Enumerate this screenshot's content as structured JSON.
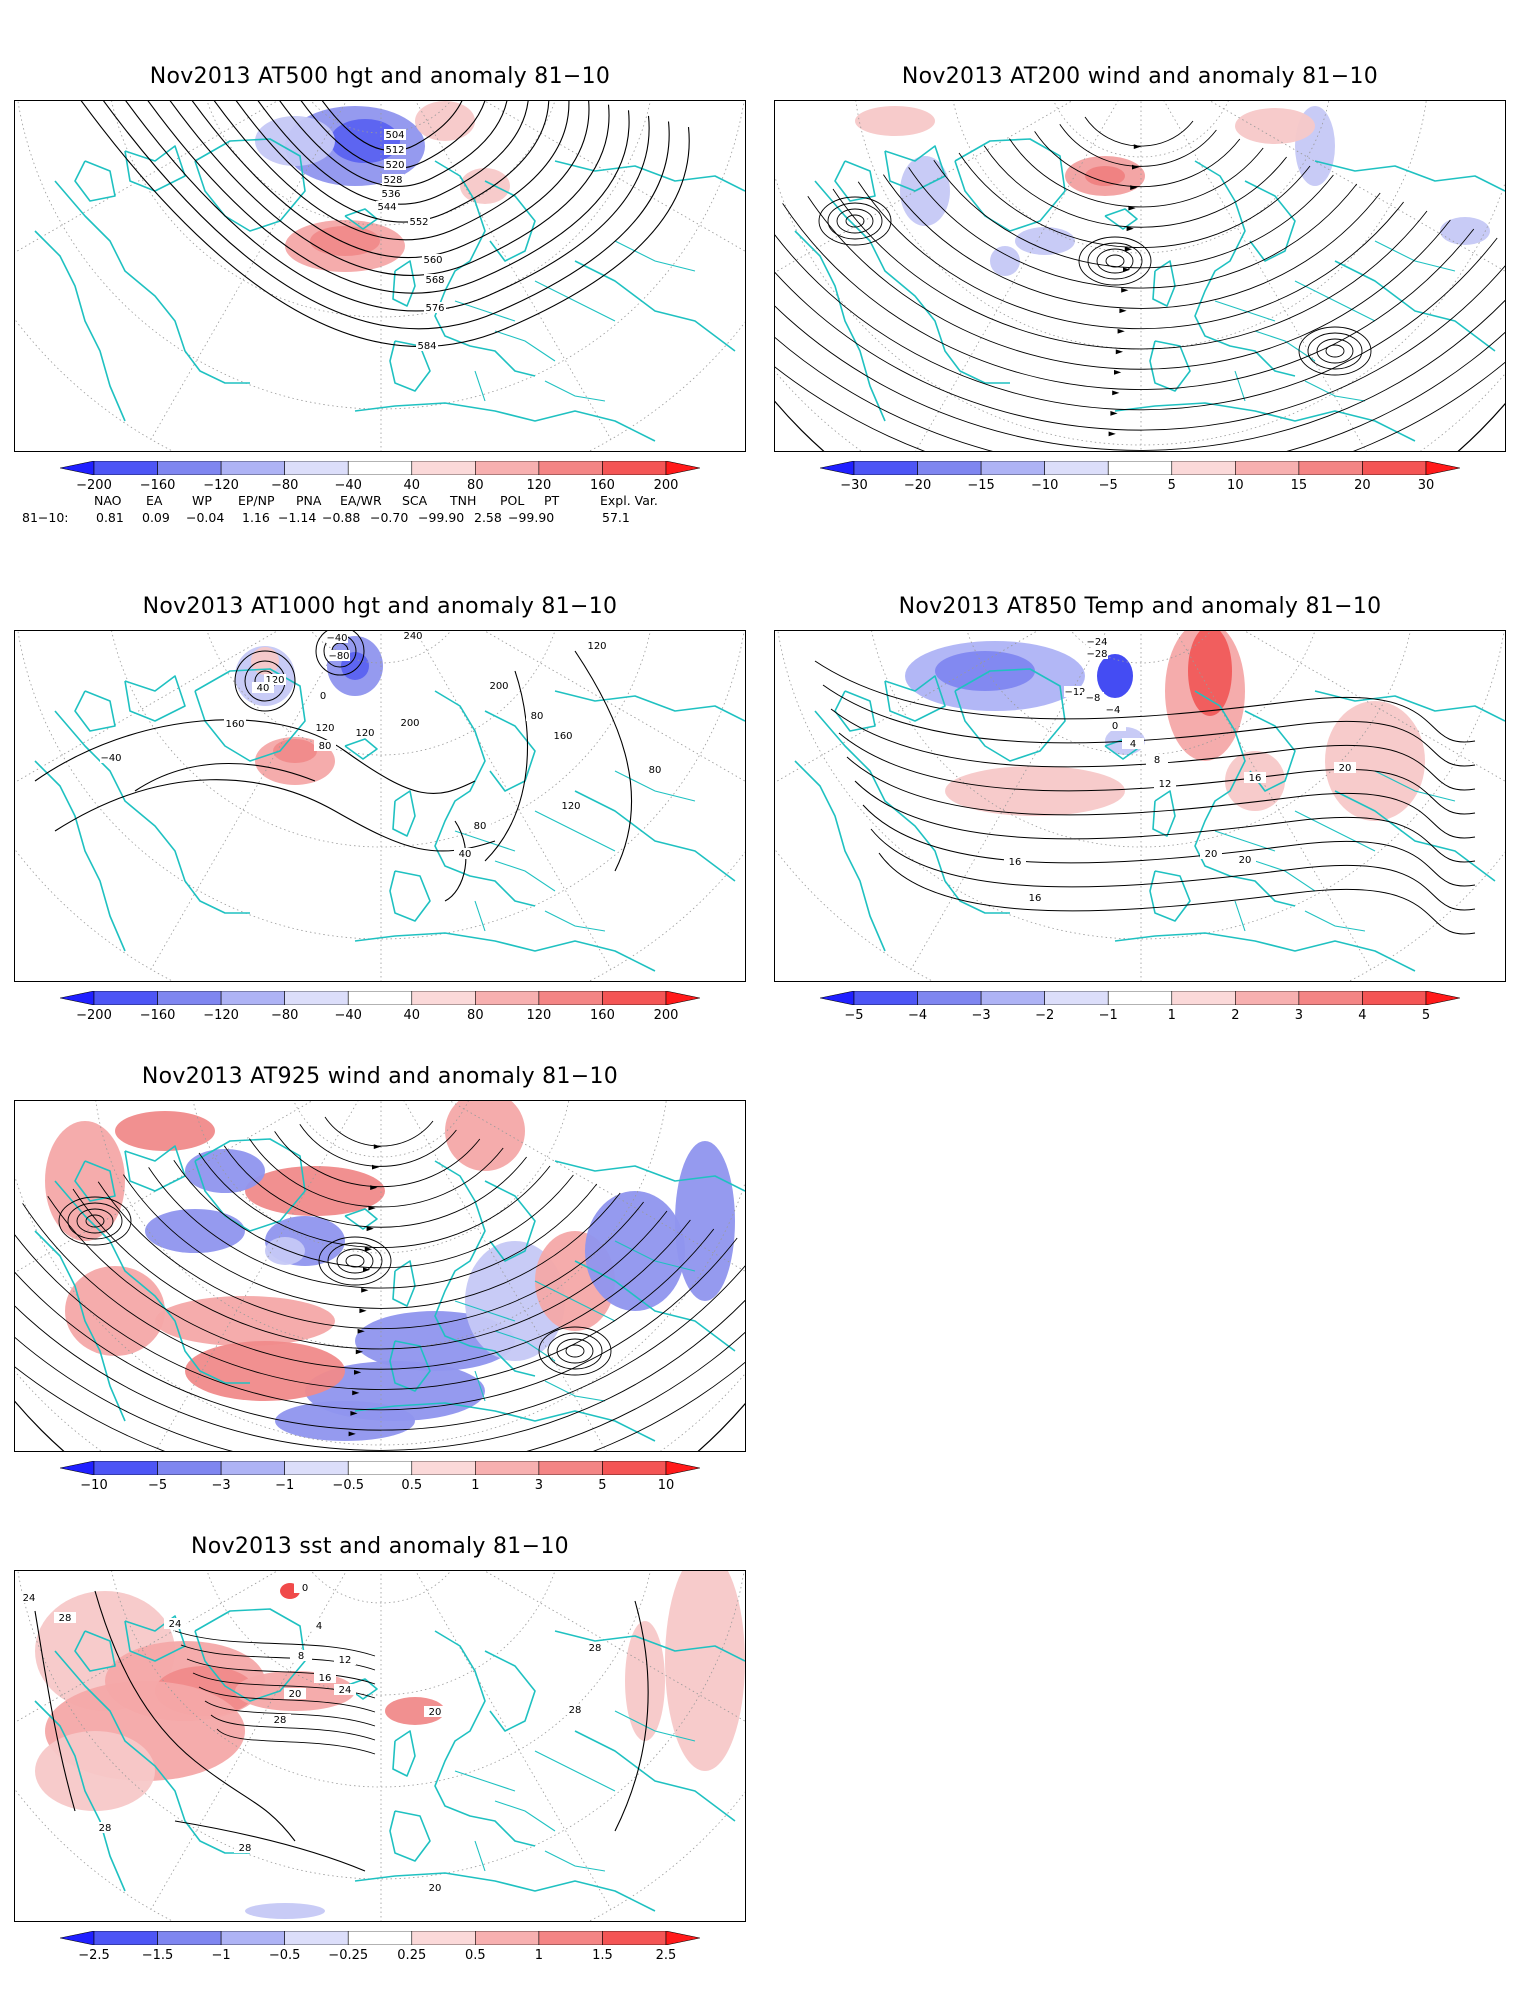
{
  "panels": [
    {
      "id": "p1",
      "title": "Nov2013 AT500 hgt and anomaly 81−10",
      "colorbar": [
        "−200",
        "−160",
        "−120",
        "−80",
        "−40",
        "40",
        "80",
        "120",
        "160",
        "200"
      ],
      "contour_labels": [
        "504",
        "512",
        "520",
        "528",
        "536",
        "544",
        "552",
        "560",
        "568",
        "576",
        "584"
      ]
    },
    {
      "id": "p2",
      "title": "Nov2013 AT200 wind and anomaly 81−10",
      "colorbar": [
        "−30",
        "−20",
        "−15",
        "−10",
        "−5",
        "5",
        "10",
        "15",
        "20",
        "30"
      ],
      "contour_labels": []
    },
    {
      "id": "p3",
      "title": "Nov2013 AT1000 hgt and anomaly 81−10",
      "colorbar": [
        "−200",
        "−160",
        "−120",
        "−80",
        "−40",
        "40",
        "80",
        "120",
        "160",
        "200"
      ],
      "contour_labels": [
        "−40",
        "−80",
        "240",
        "120",
        "80",
        "120",
        "40",
        "0",
        "200",
        "160",
        "120",
        "200",
        "120",
        "80",
        "160",
        "80",
        "120",
        "80",
        "40",
        "−40"
      ]
    },
    {
      "id": "p4",
      "title": "Nov2013 AT850 Temp and anomaly 81−10",
      "colorbar": [
        "−5",
        "−4",
        "−3",
        "−2",
        "−1",
        "1",
        "2",
        "3",
        "4",
        "5"
      ],
      "contour_labels": [
        "−24",
        "−28",
        "−12",
        "−8",
        "−4",
        "0",
        "4",
        "8",
        "12",
        "16",
        "20",
        "16",
        "20",
        "20",
        "16"
      ]
    },
    {
      "id": "p5",
      "title": "Nov2013 AT925 wind and anomaly 81−10",
      "colorbar": [
        "−10",
        "−5",
        "−3",
        "−1",
        "−0.5",
        "0.5",
        "1",
        "3",
        "5",
        "10"
      ],
      "contour_labels": []
    },
    {
      "id": "p6",
      "title": "Nov2013 sst and anomaly 81−10",
      "colorbar": [
        "−2.5",
        "−1.5",
        "−1",
        "−0.5",
        "−0.25",
        "0.25",
        "0.5",
        "1",
        "1.5",
        "2.5"
      ],
      "contour_labels": [
        "24",
        "28",
        "24",
        "0",
        "4",
        "8",
        "12",
        "16",
        "20",
        "24",
        "28",
        "28",
        "28",
        "20",
        "20",
        "28",
        "28"
      ]
    }
  ],
  "colorbar_colors": [
    "#1f1fff",
    "#4d55f5",
    "#7f86f0",
    "#aeb3f5",
    "#dcdefa",
    "#ffffff",
    "#fbd9d9",
    "#f7b0b0",
    "#f48585",
    "#f45555",
    "#ff1a1a"
  ],
  "contour_color": "#000000",
  "coast_color": "#1fc1c1",
  "indices": {
    "header": [
      "NAO",
      "EA",
      "WP",
      "EP/NP",
      "PNA",
      "EA/WR",
      "SCA",
      "TNH",
      "POL",
      "PT",
      "Expl. Var."
    ],
    "row_label": "81−10:",
    "values": [
      "0.81",
      "0.09",
      "−0.04",
      "1.16",
      "−1.14",
      "−0.88",
      "−0.70",
      "−99.90",
      "2.58",
      "−99.90",
      "57.1"
    ]
  }
}
